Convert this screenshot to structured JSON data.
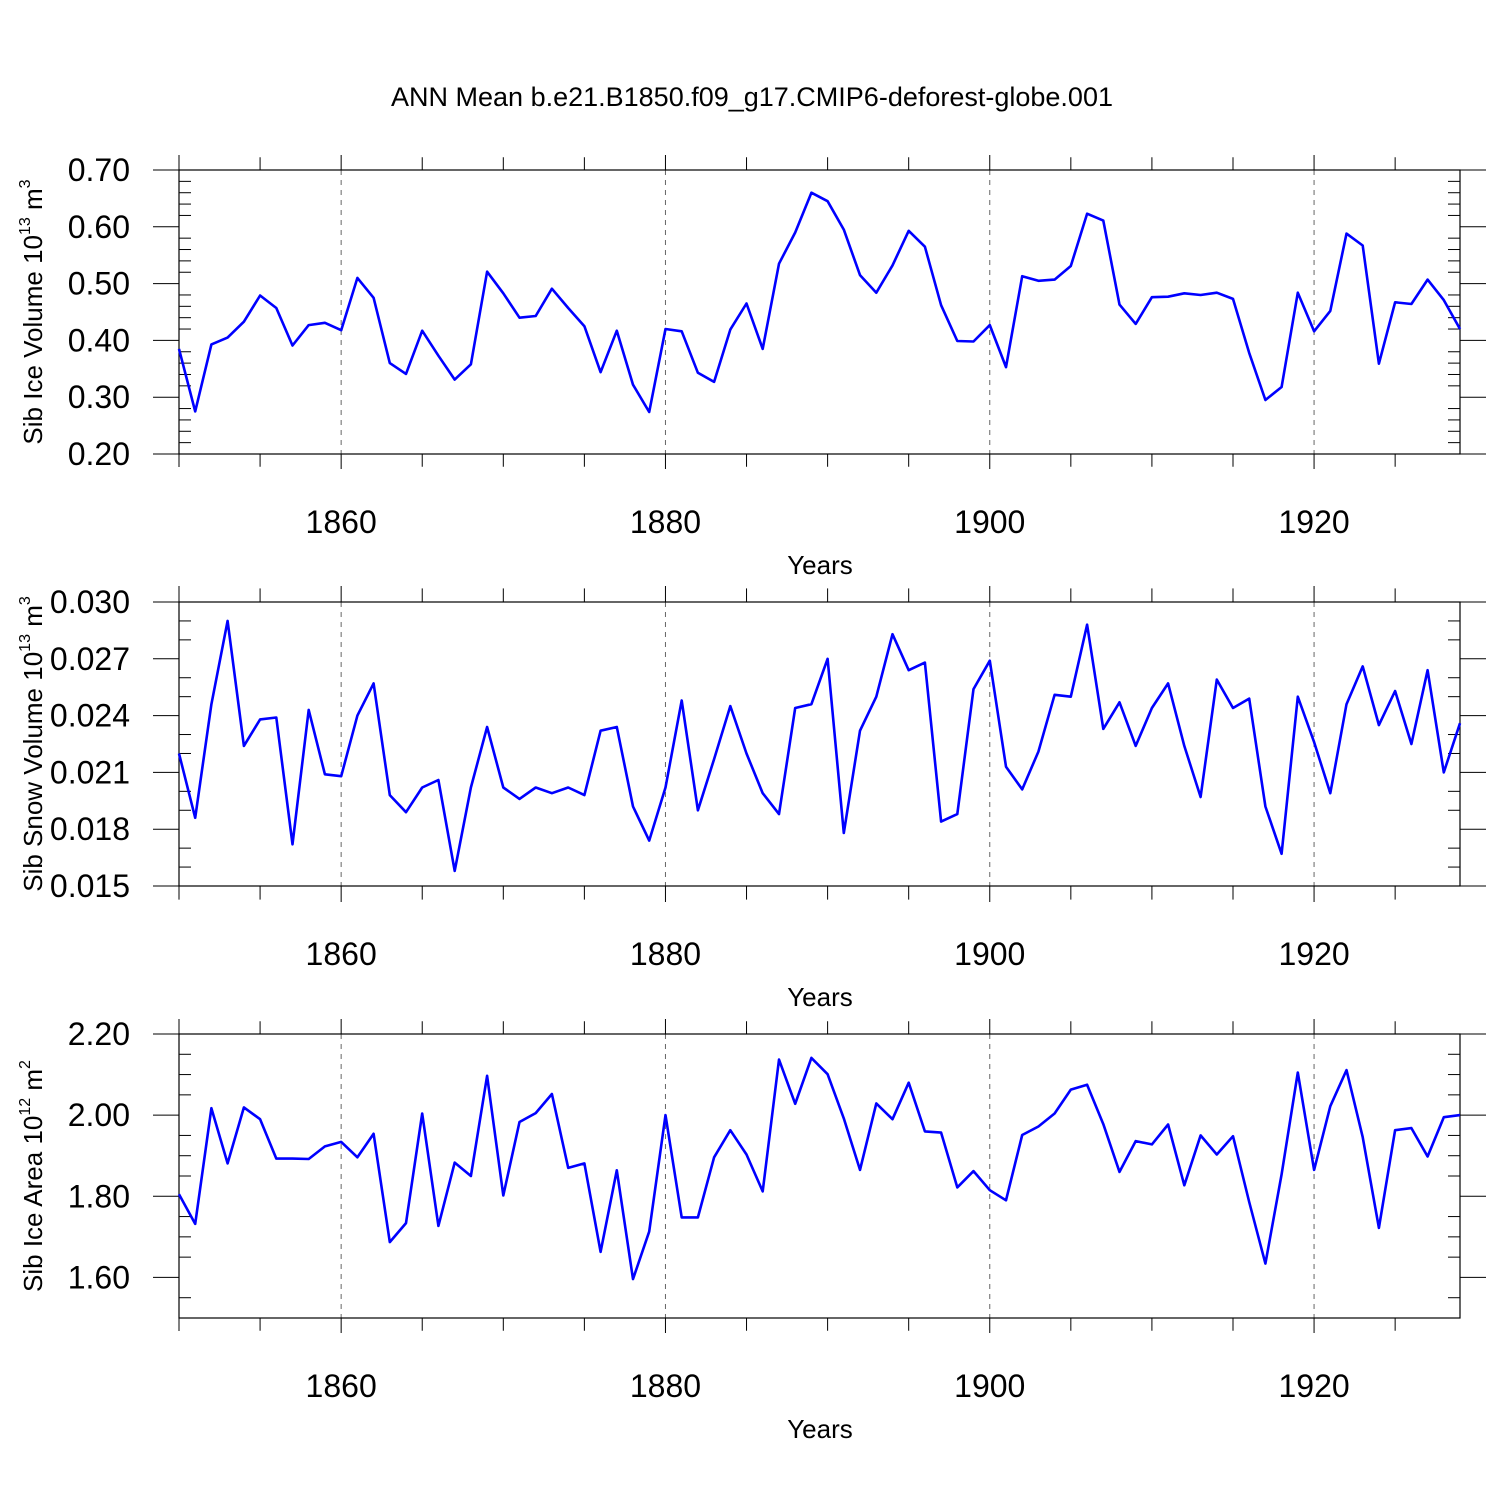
{
  "title": "ANN Mean b.e21.B1850.f09_g17.CMIP6-deforest-globe.001",
  "chart_data": [
    {
      "type": "line",
      "name": "sib-ice-volume",
      "ylabel": "Sib Ice Volume 10",
      "ylabel_exp": "13",
      "ylabel_unit": " m",
      "ylabel_unit_exp": "3",
      "xlabel": "Years",
      "xlim": [
        1850,
        1929
      ],
      "ylim": [
        0.2,
        0.7
      ],
      "y_major_ticks": [
        0.2,
        0.3,
        0.4,
        0.5,
        0.6,
        0.7
      ],
      "y_tick_labels": [
        "0.20",
        "0.30",
        "0.40",
        "0.50",
        "0.60",
        "0.70"
      ],
      "y_minor_step": 0.02,
      "x_major_ticks": [
        1860,
        1880,
        1900,
        1920
      ],
      "x_tick_labels": [
        "1860",
        "1880",
        "1900",
        "1920"
      ],
      "x_minor_step": 5,
      "color": "#0000ff",
      "x_start": 1850,
      "values": [
        0.385,
        0.275,
        0.393,
        0.405,
        0.433,
        0.479,
        0.457,
        0.391,
        0.427,
        0.431,
        0.418,
        0.51,
        0.475,
        0.36,
        0.341,
        0.417,
        0.373,
        0.331,
        0.358,
        0.521,
        0.483,
        0.44,
        0.443,
        0.491,
        0.457,
        0.425,
        0.344,
        0.417,
        0.322,
        0.274,
        0.42,
        0.416,
        0.343,
        0.327,
        0.419,
        0.465,
        0.385,
        0.535,
        0.59,
        0.66,
        0.645,
        0.595,
        0.515,
        0.484,
        0.532,
        0.593,
        0.565,
        0.462,
        0.399,
        0.398,
        0.427,
        0.353,
        0.513,
        0.505,
        0.507,
        0.531,
        0.623,
        0.611,
        0.463,
        0.429,
        0.476,
        0.477,
        0.483,
        0.48,
        0.484,
        0.473,
        0.378,
        0.295,
        0.318,
        0.484,
        0.416,
        0.452,
        0.588,
        0.567,
        0.359,
        0.467,
        0.464,
        0.507,
        0.471,
        0.42
      ]
    },
    {
      "type": "line",
      "name": "sib-snow-volume",
      "ylabel": "Sib Snow Volume 10",
      "ylabel_exp": "13",
      "ylabel_unit": " m",
      "ylabel_unit_exp": "3",
      "xlabel": "Years",
      "xlim": [
        1850,
        1929
      ],
      "ylim": [
        0.015,
        0.03
      ],
      "y_major_ticks": [
        0.015,
        0.018,
        0.021,
        0.024,
        0.027,
        0.03
      ],
      "y_tick_labels": [
        "0.015",
        "0.018",
        "0.021",
        "0.024",
        "0.027",
        "0.030"
      ],
      "y_minor_step": 0.001,
      "x_major_ticks": [
        1860,
        1880,
        1900,
        1920
      ],
      "x_tick_labels": [
        "1860",
        "1880",
        "1900",
        "1920"
      ],
      "x_minor_step": 5,
      "color": "#0000ff",
      "x_start": 1850,
      "values": [
        0.022,
        0.0186,
        0.0246,
        0.029,
        0.0224,
        0.0238,
        0.0239,
        0.0172,
        0.0243,
        0.0209,
        0.0208,
        0.024,
        0.0257,
        0.0198,
        0.0189,
        0.0202,
        0.0206,
        0.0158,
        0.0202,
        0.0234,
        0.0202,
        0.0196,
        0.0202,
        0.0199,
        0.0202,
        0.0198,
        0.0232,
        0.0234,
        0.0192,
        0.0174,
        0.0202,
        0.0248,
        0.019,
        0.0217,
        0.0245,
        0.022,
        0.0199,
        0.0188,
        0.0244,
        0.0246,
        0.027,
        0.0178,
        0.0232,
        0.025,
        0.0283,
        0.0264,
        0.0268,
        0.0184,
        0.0188,
        0.0254,
        0.0269,
        0.0213,
        0.0201,
        0.0221,
        0.0251,
        0.025,
        0.0288,
        0.0233,
        0.0247,
        0.0224,
        0.0244,
        0.0257,
        0.0224,
        0.0197,
        0.0259,
        0.0244,
        0.0249,
        0.0192,
        0.0167,
        0.025,
        0.0226,
        0.0199,
        0.0246,
        0.0266,
        0.0235,
        0.0253,
        0.0225,
        0.0264,
        0.021,
        0.0236
      ]
    },
    {
      "type": "line",
      "name": "sib-ice-area",
      "ylabel": "Sib Ice Area 10",
      "ylabel_exp": "12",
      "ylabel_unit": " m",
      "ylabel_unit_exp": "2",
      "xlabel": "Years",
      "xlim": [
        1850,
        1929
      ],
      "ylim": [
        1.5,
        2.2
      ],
      "y_major_ticks": [
        1.6,
        1.8,
        2.0,
        2.2
      ],
      "y_tick_labels": [
        "1.60",
        "1.80",
        "2.00",
        "2.20"
      ],
      "y_minor_step": 0.05,
      "x_major_ticks": [
        1860,
        1880,
        1900,
        1920
      ],
      "x_tick_labels": [
        "1860",
        "1880",
        "1900",
        "1920"
      ],
      "x_minor_step": 5,
      "color": "#0000ff",
      "x_start": 1850,
      "values": [
        1.805,
        1.732,
        2.017,
        1.881,
        2.019,
        1.99,
        1.893,
        1.893,
        1.892,
        1.923,
        1.934,
        1.896,
        1.954,
        1.687,
        1.734,
        2.004,
        1.727,
        1.883,
        1.85,
        2.097,
        1.802,
        1.983,
        2.005,
        2.052,
        1.87,
        1.881,
        1.663,
        1.864,
        1.596,
        1.713,
        2.0,
        1.748,
        1.748,
        1.896,
        1.963,
        1.903,
        1.812,
        2.137,
        2.028,
        2.141,
        2.101,
        1.992,
        1.865,
        2.029,
        1.99,
        2.08,
        1.96,
        1.957,
        1.822,
        1.862,
        1.815,
        1.79,
        1.951,
        1.972,
        2.004,
        2.063,
        2.075,
        1.978,
        1.86,
        1.936,
        1.928,
        1.977,
        1.827,
        1.95,
        1.903,
        1.948,
        1.786,
        1.634,
        1.854,
        2.105,
        1.865,
        2.022,
        2.111,
        1.946,
        1.722,
        1.963,
        1.968,
        1.898,
        1.995,
        2.0
      ]
    }
  ]
}
